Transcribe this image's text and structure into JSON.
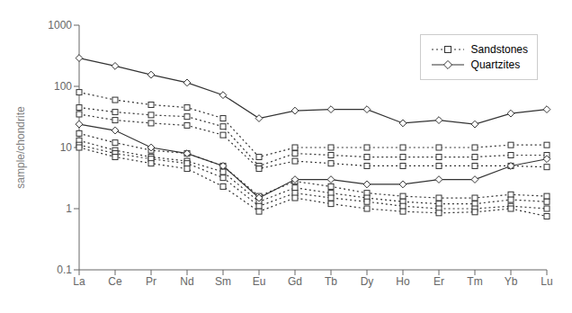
{
  "chart_data": {
    "type": "line",
    "categories": [
      "La",
      "Ce",
      "Pr",
      "Nd",
      "Sm",
      "Eu",
      "Gd",
      "Tb",
      "Dy",
      "Ho",
      "Er",
      "Tm",
      "Yb",
      "Lu"
    ],
    "ylabel": "sample/chondrite",
    "log": "y",
    "ylim": [
      0.1,
      1000
    ],
    "yticks": [
      0.1,
      1,
      10,
      100,
      1000
    ],
    "grid": false,
    "legend": "upper right",
    "series": [
      {
        "name": "Sandstones",
        "color": "#333333",
        "marker": "square",
        "line_style": "dotted",
        "values": [
          80,
          60,
          50,
          45,
          30,
          7,
          10,
          10,
          10,
          10,
          10,
          10,
          11,
          11
        ]
      },
      {
        "name": "Sandstones",
        "color": "#333333",
        "marker": "square",
        "line_style": "dotted",
        "values": [
          45,
          38,
          34,
          32,
          22,
          5,
          8,
          7.5,
          7,
          7,
          7,
          7,
          7.5,
          7.5
        ]
      },
      {
        "name": "Sandstones",
        "color": "#333333",
        "marker": "square",
        "line_style": "dotted",
        "values": [
          35,
          28,
          25,
          23,
          16,
          4.5,
          6,
          5.5,
          5,
          5,
          5,
          5,
          5,
          4.8
        ]
      },
      {
        "name": "Sandstones",
        "color": "#333333",
        "marker": "square",
        "line_style": "dotted",
        "values": [
          17,
          12,
          9,
          8,
          5,
          1.6,
          2.8,
          2.3,
          1.8,
          1.6,
          1.5,
          1.5,
          1.7,
          1.6
        ]
      },
      {
        "name": "Sandstones",
        "color": "#333333",
        "marker": "square",
        "line_style": "dotted",
        "values": [
          13,
          9,
          7,
          6,
          4,
          1.3,
          2.2,
          1.8,
          1.5,
          1.3,
          1.2,
          1.2,
          1.4,
          1.3
        ]
      },
      {
        "name": "Sandstones",
        "color": "#333333",
        "marker": "square",
        "line_style": "dotted",
        "values": [
          11,
          8,
          6.5,
          5.5,
          3.2,
          1.1,
          1.8,
          1.5,
          1.3,
          1.1,
          1.0,
          1.0,
          1.1,
          1.0
        ]
      },
      {
        "name": "Sandstones",
        "color": "#333333",
        "marker": "square",
        "line_style": "dotted",
        "values": [
          10,
          7,
          5.5,
          4.5,
          2.3,
          0.9,
          1.5,
          1.2,
          1.0,
          0.9,
          0.85,
          0.88,
          1.0,
          0.75
        ]
      },
      {
        "name": "Quartzites",
        "color": "#333333",
        "marker": "diamond",
        "line_style": "solid",
        "values": [
          290,
          215,
          155,
          115,
          72,
          30,
          40,
          42,
          42,
          25,
          28,
          24,
          36,
          42
        ]
      },
      {
        "name": "Quartzites",
        "color": "#333333",
        "marker": "diamond",
        "line_style": "solid",
        "values": [
          24,
          19,
          10,
          8,
          5,
          1.5,
          3,
          3,
          2.5,
          2.5,
          3,
          3,
          5,
          6.5
        ]
      }
    ]
  }
}
